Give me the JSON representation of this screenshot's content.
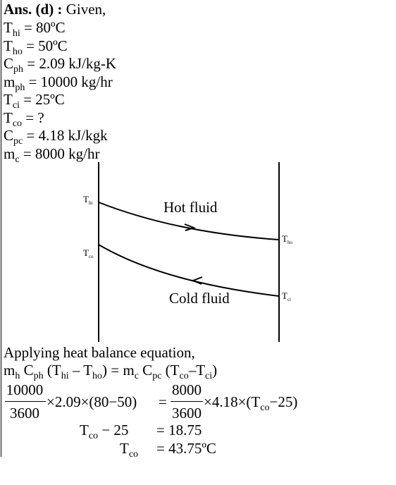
{
  "answer": {
    "label": "Ans. (d) :",
    "text": "Given,"
  },
  "given": [
    [
      {
        "t": "T",
        "s": "hi"
      },
      {
        "t": " = 80ºC"
      }
    ],
    [
      {
        "t": "T",
        "s": "ho"
      },
      {
        "t": " = 50ºC"
      }
    ],
    [
      {
        "t": "C",
        "s": "ph"
      },
      {
        "t": " = 2.09 kJ/kg-K"
      }
    ],
    [
      {
        "t": "m",
        "s": "ph"
      },
      {
        "t": " = 10000 kg/hr"
      }
    ],
    [
      {
        "t": "T",
        "s": "ci"
      },
      {
        "t": " = 25ºC"
      }
    ],
    [
      {
        "t": "T",
        "s": "co"
      },
      {
        "t": " = ?"
      }
    ],
    [
      {
        "t": "C",
        "s": "pc"
      },
      {
        "t": " = 4.18 kJ/kgk"
      }
    ],
    [
      {
        "t": "m",
        "s": "c"
      },
      {
        "t": " = 8000 kg/hr"
      }
    ]
  ],
  "diagram": {
    "hot_label": "Hot fluid",
    "cold_label": "Cold fluid",
    "t_hi": [
      {
        "t": "T",
        "s": "hi"
      }
    ],
    "t_co": [
      {
        "t": "T",
        "s": "co"
      }
    ],
    "t_ho": [
      {
        "t": "T",
        "s": "ho"
      }
    ],
    "t_ci": [
      {
        "t": "T",
        "s": "ci"
      }
    ]
  },
  "solution": {
    "intro": "Applying heat balance equation,",
    "equation": [
      {
        "t": "m",
        "s": "h"
      },
      {
        "t": " C",
        "s": "ph"
      },
      {
        "t": " (T",
        "s": "hi"
      },
      {
        "t": " – T",
        "s": "ho"
      },
      {
        "t": ") = m",
        "s": "c"
      },
      {
        "t": " C",
        "s": "pc"
      },
      {
        "t": " (T",
        "s": "co"
      },
      {
        "t": "–T",
        "s": "ci"
      },
      {
        "t": ")"
      }
    ],
    "left": {
      "num": "10000",
      "den": "3600",
      "rest": [
        {
          "t": "×2.09×(80−50)"
        }
      ]
    },
    "equals": "=",
    "right": {
      "num": "8000",
      "den": "3600",
      "rest": [
        {
          "t": "×4.18×(T",
          "s": "co"
        },
        {
          "t": "−25)"
        }
      ]
    },
    "step1": {
      "lhs": [
        {
          "t": "T",
          "s": "co"
        },
        {
          "t": " − 25"
        }
      ],
      "rhs": "= 18.75"
    },
    "step2": {
      "lhs": [
        {
          "t": "T",
          "s": "co"
        }
      ],
      "rhs": "= 43.75ºC"
    }
  }
}
